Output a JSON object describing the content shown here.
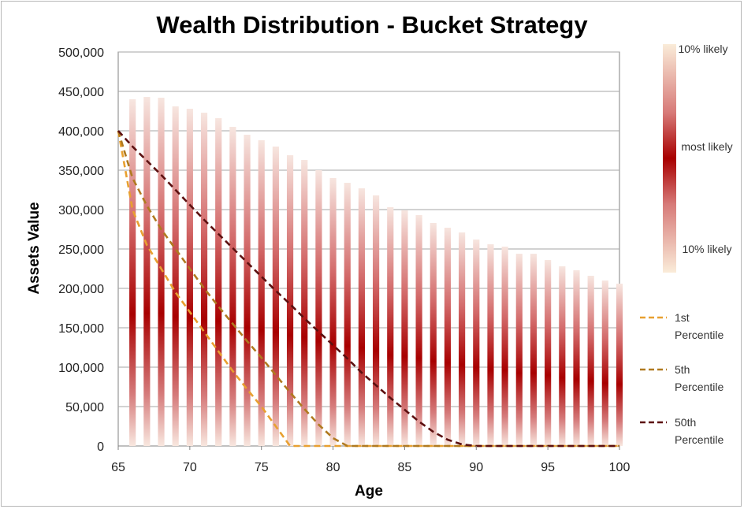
{
  "chart_data": {
    "type": "bar",
    "title": "Wealth Distribution - Bucket Strategy",
    "xlabel": "Age",
    "ylabel": "Assets Value",
    "xlim": [
      65,
      100
    ],
    "ylim": [
      0,
      500000
    ],
    "xticks": [
      "65",
      "70",
      "75",
      "80",
      "85",
      "90",
      "95",
      "100"
    ],
    "yticks": [
      "0",
      "50,000",
      "100,000",
      "150,000",
      "200,000",
      "250,000",
      "300,000",
      "350,000",
      "400,000",
      "450,000",
      "500,000"
    ],
    "grid": true,
    "ages": [
      66,
      67,
      68,
      69,
      70,
      71,
      72,
      73,
      74,
      75,
      76,
      77,
      78,
      79,
      80,
      81,
      82,
      83,
      84,
      85,
      86,
      87,
      88,
      89,
      90,
      91,
      92,
      93,
      94,
      95,
      96,
      97,
      98,
      99,
      100
    ],
    "range_top": [
      440000,
      443000,
      442000,
      431000,
      428000,
      423000,
      416000,
      405000,
      395000,
      388000,
      380000,
      369000,
      363000,
      350000,
      340000,
      334000,
      327000,
      318000,
      303000,
      299000,
      293000,
      283000,
      277000,
      271000,
      262000,
      256000,
      253000,
      244000,
      244000,
      236000,
      228000,
      223000,
      216000,
      210000,
      206000
    ],
    "series": [
      {
        "name": "1st Percentile",
        "color": "#e8a030",
        "x": [
          65,
          66,
          67,
          68,
          69,
          70,
          71,
          72,
          73,
          74,
          75,
          76,
          77,
          78,
          79,
          80,
          81,
          82,
          85,
          90,
          95,
          100
        ],
        "y": [
          400000,
          300000,
          255000,
          225000,
          195000,
          170000,
          145000,
          120000,
          95000,
          72000,
          50000,
          25000,
          0,
          0,
          0,
          0,
          0,
          0,
          0,
          0,
          0,
          0
        ]
      },
      {
        "name": "5th Percentile",
        "color": "#b07a20",
        "x": [
          65,
          66,
          67,
          68,
          69,
          70,
          71,
          72,
          73,
          74,
          75,
          76,
          77,
          78,
          79,
          80,
          81,
          82,
          85,
          90,
          95,
          100
        ],
        "y": [
          400000,
          340000,
          305000,
          275000,
          250000,
          225000,
          200000,
          177000,
          155000,
          133000,
          112000,
          90000,
          68000,
          47000,
          27000,
          10000,
          0,
          0,
          0,
          0,
          0,
          0
        ]
      },
      {
        "name": "50th Percentile",
        "color": "#5c1010",
        "x": [
          65,
          66,
          67,
          68,
          69,
          70,
          71,
          72,
          73,
          74,
          75,
          76,
          77,
          78,
          79,
          80,
          81,
          82,
          83,
          84,
          85,
          86,
          87,
          88,
          89,
          90,
          91,
          95,
          100
        ],
        "y": [
          400000,
          380000,
          362000,
          344000,
          325000,
          306000,
          287000,
          269000,
          251000,
          233000,
          215000,
          197000,
          180000,
          162000,
          145000,
          128000,
          111000,
          93000,
          77000,
          61000,
          46000,
          31000,
          18000,
          8000,
          2000,
          0,
          0,
          0,
          0
        ]
      }
    ]
  },
  "legend_scale": {
    "top_label": "10% likely",
    "mid_label": "most likely",
    "bottom_label": "10% likely"
  },
  "legend_lines": [
    {
      "line1": "1st",
      "line2": "Percentile",
      "color": "#e8a030"
    },
    {
      "line1": "5th",
      "line2": "Percentile",
      "color": "#b07a20"
    },
    {
      "line1": "50th",
      "line2": "Percentile",
      "color": "#5c1010"
    }
  ],
  "colors": {
    "bar_dark": "#a40000",
    "bar_light": "#f7e3da",
    "grid": "#a6a6a6"
  }
}
